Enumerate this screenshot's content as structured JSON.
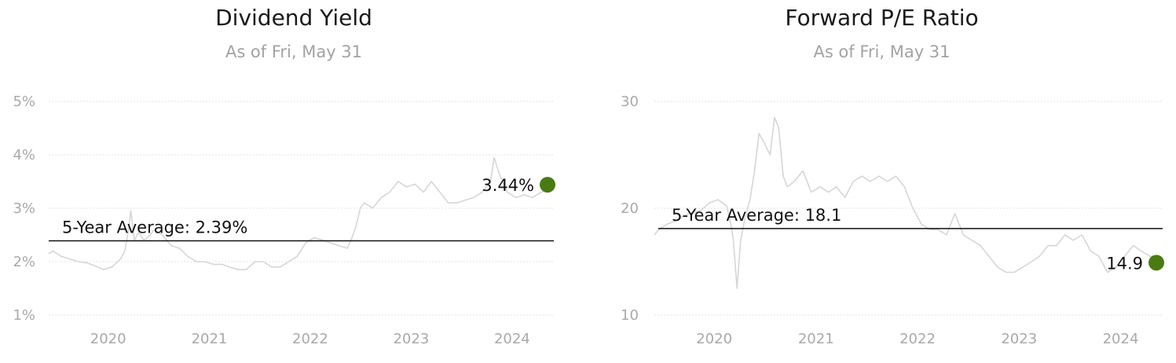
{
  "chart_data": [
    {
      "type": "line",
      "title": "Dividend Yield",
      "subtitle": "As of Fri, May 31",
      "y_unit": "%",
      "ylim": [
        1,
        5
      ],
      "yticks": [
        1,
        2,
        3,
        4,
        5
      ],
      "ytick_labels": [
        "1%",
        "2%",
        "3%",
        "4%",
        "5%"
      ],
      "xlim": [
        "2019-05-31",
        "2024-05-31"
      ],
      "xticks": [
        "2020-01-01",
        "2021-01-01",
        "2022-01-01",
        "2023-01-01",
        "2024-01-01"
      ],
      "xtick_labels": [
        "2020",
        "2021",
        "2022",
        "2023",
        "2024"
      ],
      "grid": true,
      "line_color": "#d6d6d6",
      "series": [
        {
          "x": [
            "2019-05-31",
            "2019-06-15",
            "2019-07-15",
            "2019-08-15",
            "2019-09-15",
            "2019-10-15",
            "2019-11-15",
            "2019-12-15",
            "2020-01-15",
            "2020-02-15",
            "2020-03-01",
            "2020-03-15",
            "2020-03-23",
            "2020-04-05",
            "2020-04-20",
            "2020-05-10",
            "2020-06-01",
            "2020-06-15",
            "2020-07-15",
            "2020-08-15",
            "2020-09-15",
            "2020-10-15",
            "2020-11-15",
            "2020-12-15",
            "2021-01-15",
            "2021-02-15",
            "2021-03-15",
            "2021-04-15",
            "2021-05-15",
            "2021-06-15",
            "2021-07-15",
            "2021-08-15",
            "2021-09-15",
            "2021-10-15",
            "2021-11-15",
            "2021-12-15",
            "2022-01-15",
            "2022-02-15",
            "2022-03-15",
            "2022-04-15",
            "2022-05-15",
            "2022-06-01",
            "2022-06-15",
            "2022-07-01",
            "2022-07-15",
            "2022-08-15",
            "2022-09-15",
            "2022-10-15",
            "2022-11-15",
            "2022-12-15",
            "2023-01-15",
            "2023-02-15",
            "2023-03-15",
            "2023-04-15",
            "2023-05-15",
            "2023-06-15",
            "2023-07-15",
            "2023-08-15",
            "2023-09-15",
            "2023-10-15",
            "2023-10-28",
            "2023-11-15",
            "2023-12-15",
            "2024-01-15",
            "2024-02-15",
            "2024-03-15",
            "2024-04-15",
            "2024-05-15"
          ],
          "values": [
            2.15,
            2.2,
            2.1,
            2.05,
            2.0,
            1.98,
            1.92,
            1.85,
            1.9,
            2.05,
            2.2,
            2.6,
            2.95,
            2.4,
            2.55,
            2.4,
            2.5,
            2.6,
            2.5,
            2.3,
            2.25,
            2.1,
            2.0,
            2.0,
            1.95,
            1.95,
            1.9,
            1.85,
            1.85,
            2.0,
            2.0,
            1.9,
            1.9,
            2.0,
            2.1,
            2.35,
            2.45,
            2.4,
            2.35,
            2.3,
            2.25,
            2.45,
            2.65,
            3.0,
            3.1,
            3.0,
            3.2,
            3.3,
            3.5,
            3.4,
            3.45,
            3.3,
            3.5,
            3.3,
            3.1,
            3.1,
            3.15,
            3.2,
            3.3,
            3.5,
            3.95,
            3.65,
            3.3,
            3.2,
            3.25,
            3.2,
            3.3,
            3.35
          ]
        }
      ],
      "average": {
        "value": 2.39,
        "label": "5-Year Average: 2.39%"
      },
      "last": {
        "x": "2024-05-31",
        "value": 3.44,
        "label": "3.44%",
        "color": "#4a7b12"
      }
    },
    {
      "type": "line",
      "title": "Forward P/E Ratio",
      "subtitle": "As of Fri, May 31",
      "y_unit": "",
      "ylim": [
        10,
        30
      ],
      "yticks": [
        10,
        20,
        30
      ],
      "ytick_labels": [
        "10",
        "20",
        "30"
      ],
      "xlim": [
        "2019-05-31",
        "2024-05-31"
      ],
      "xticks": [
        "2020-01-01",
        "2021-01-01",
        "2022-01-01",
        "2023-01-01",
        "2024-01-01"
      ],
      "xtick_labels": [
        "2020",
        "2021",
        "2022",
        "2023",
        "2024"
      ],
      "grid": true,
      "line_color": "#d6d6d6",
      "series": [
        {
          "x": [
            "2019-05-31",
            "2019-06-15",
            "2019-07-15",
            "2019-08-15",
            "2019-09-15",
            "2019-10-15",
            "2019-11-15",
            "2019-12-15",
            "2020-01-15",
            "2020-02-15",
            "2020-03-01",
            "2020-03-10",
            "2020-03-23",
            "2020-04-05",
            "2020-04-20",
            "2020-05-10",
            "2020-05-25",
            "2020-06-10",
            "2020-07-01",
            "2020-07-20",
            "2020-08-05",
            "2020-08-20",
            "2020-09-05",
            "2020-09-20",
            "2020-10-15",
            "2020-11-15",
            "2020-12-15",
            "2021-01-15",
            "2021-02-15",
            "2021-03-15",
            "2021-04-15",
            "2021-05-15",
            "2021-06-15",
            "2021-07-15",
            "2021-08-15",
            "2021-09-15",
            "2021-10-15",
            "2021-11-15",
            "2021-12-15",
            "2022-01-15",
            "2022-02-15",
            "2022-03-15",
            "2022-04-15",
            "2022-05-15",
            "2022-06-15",
            "2022-07-15",
            "2022-08-15",
            "2022-09-15",
            "2022-10-15",
            "2022-11-15",
            "2022-12-15",
            "2023-01-15",
            "2023-02-15",
            "2023-03-15",
            "2023-04-15",
            "2023-05-15",
            "2023-06-15",
            "2023-07-15",
            "2023-08-15",
            "2023-09-15",
            "2023-10-15",
            "2023-11-15",
            "2023-12-15",
            "2024-01-15",
            "2024-02-15",
            "2024-03-15",
            "2024-04-15",
            "2024-05-15"
          ],
          "values": [
            17.5,
            18.0,
            18.5,
            18.8,
            19.3,
            19.6,
            19.8,
            20.5,
            20.8,
            20.2,
            18.5,
            17.0,
            12.5,
            17.0,
            19.0,
            21.0,
            23.5,
            27.0,
            26.0,
            25.0,
            28.5,
            27.5,
            23.0,
            22.0,
            22.5,
            23.5,
            21.5,
            22.0,
            21.5,
            22.0,
            21.0,
            22.5,
            23.0,
            22.5,
            23.0,
            22.5,
            23.0,
            22.0,
            20.0,
            18.5,
            18.0,
            18.0,
            17.5,
            19.5,
            17.5,
            17.0,
            16.5,
            15.5,
            14.5,
            14.0,
            14.0,
            14.5,
            15.0,
            15.5,
            16.5,
            16.5,
            17.5,
            17.0,
            17.5,
            16.0,
            15.5,
            14.0,
            14.5,
            15.5,
            16.5,
            16.0,
            15.5,
            15.5
          ]
        }
      ],
      "average": {
        "value": 18.1,
        "label": "5-Year Average: 18.1"
      },
      "last": {
        "x": "2024-05-31",
        "value": 14.9,
        "label": "14.9",
        "color": "#4a7b12"
      }
    }
  ]
}
